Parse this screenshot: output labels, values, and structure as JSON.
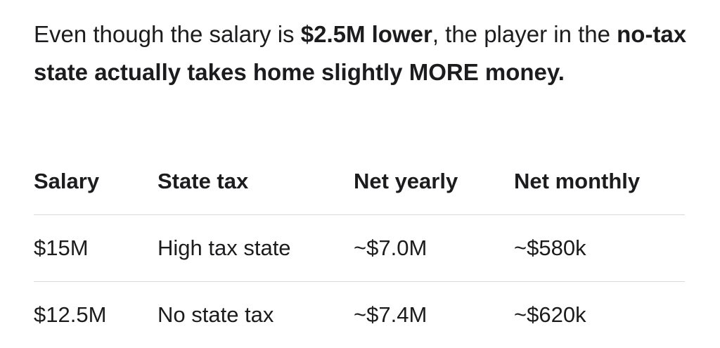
{
  "paragraph": [
    {
      "text": "Even though the salary is ",
      "bold": false
    },
    {
      "text": "$2.5M lower",
      "bold": true
    },
    {
      "text": ", the player in the ",
      "bold": false
    },
    {
      "text": "no-tax state actually takes home slightly MORE money.",
      "bold": true
    }
  ],
  "table": {
    "header": [
      "Salary",
      "State tax",
      "Net yearly",
      "Net monthly"
    ],
    "rows": [
      [
        "$15M",
        "High tax state",
        "~$7.0M",
        "~$580k"
      ],
      [
        "$12.5M",
        "No state tax",
        "~$7.4M",
        "~$620k"
      ]
    ]
  }
}
